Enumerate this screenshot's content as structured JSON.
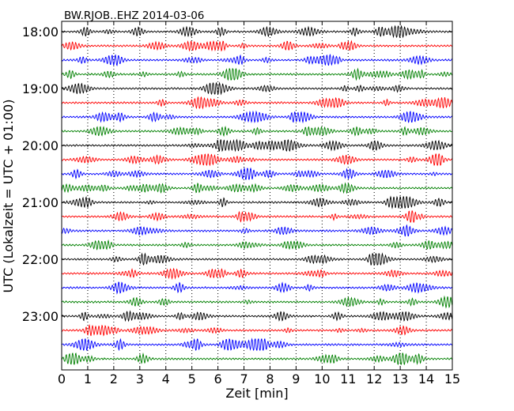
{
  "chart_data": {
    "type": "line",
    "title": "BW.RJOB..EHZ 2014-03-06",
    "xlabel": "Zeit  [min]",
    "ylabel": "UTC (Lokalzeit = UTC + 01:00)",
    "xlim": [
      0,
      15
    ],
    "x_ticks": [
      0,
      1,
      2,
      3,
      4,
      5,
      6,
      7,
      8,
      9,
      10,
      11,
      12,
      13,
      14,
      15
    ],
    "x_tick_labels": [
      "0",
      "1",
      "2",
      "3",
      "4",
      "5",
      "6",
      "7",
      "8",
      "9",
      "10",
      "11",
      "12",
      "13",
      "14",
      "15"
    ],
    "vertical_grid": "dotted",
    "row_interval_min": 15,
    "start_time": "18:00",
    "y_tick_labels": [
      "18:00",
      "19:00",
      "20:00",
      "21:00",
      "22:00",
      "23:00"
    ],
    "colors": [
      "#000000",
      "#ff0000",
      "#0000ff",
      "#008000"
    ],
    "rows": [
      {
        "start": "18:00",
        "color": "#000000"
      },
      {
        "start": "18:15",
        "color": "#ff0000"
      },
      {
        "start": "18:30",
        "color": "#0000ff"
      },
      {
        "start": "18:45",
        "color": "#008000"
      },
      {
        "start": "19:00",
        "color": "#000000"
      },
      {
        "start": "19:15",
        "color": "#ff0000"
      },
      {
        "start": "19:30",
        "color": "#0000ff"
      },
      {
        "start": "19:45",
        "color": "#008000"
      },
      {
        "start": "20:00",
        "color": "#000000"
      },
      {
        "start": "20:15",
        "color": "#ff0000"
      },
      {
        "start": "20:30",
        "color": "#0000ff"
      },
      {
        "start": "20:45",
        "color": "#008000"
      },
      {
        "start": "21:00",
        "color": "#000000"
      },
      {
        "start": "21:15",
        "color": "#ff0000"
      },
      {
        "start": "21:30",
        "color": "#0000ff"
      },
      {
        "start": "21:45",
        "color": "#008000"
      },
      {
        "start": "22:00",
        "color": "#000000"
      },
      {
        "start": "22:15",
        "color": "#ff0000"
      },
      {
        "start": "22:30",
        "color": "#0000ff"
      },
      {
        "start": "22:45",
        "color": "#008000"
      },
      {
        "start": "23:00",
        "color": "#000000"
      },
      {
        "start": "23:15",
        "color": "#ff0000"
      },
      {
        "start": "23:30",
        "color": "#0000ff"
      },
      {
        "start": "23:45",
        "color": "#008000"
      }
    ]
  }
}
